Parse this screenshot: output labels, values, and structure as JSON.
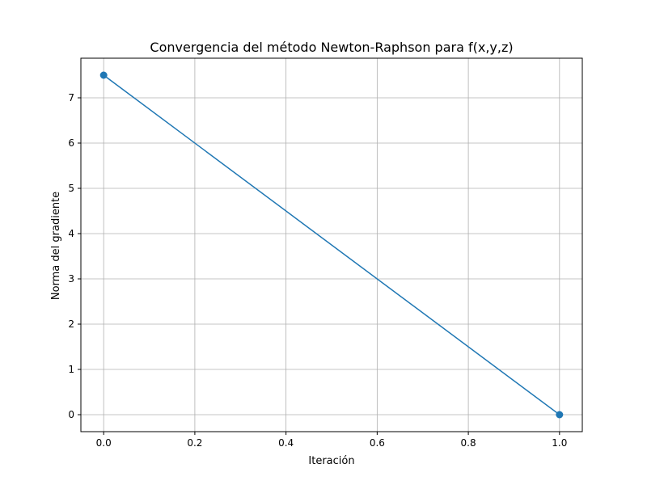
{
  "chart_data": {
    "type": "line",
    "title": "Convergencia del método Newton-Raphson para f(x,y,z)",
    "xlabel": "Iteración",
    "ylabel": "Norma del gradiente",
    "xlim": [
      -0.05,
      1.05
    ],
    "ylim": [
      -0.375,
      7.875
    ],
    "xticks": [
      0.0,
      0.2,
      0.4,
      0.6,
      0.8,
      1.0
    ],
    "xtick_labels": [
      "0.0",
      "0.2",
      "0.4",
      "0.6",
      "0.8",
      "1.0"
    ],
    "yticks": [
      0,
      1,
      2,
      3,
      4,
      5,
      6,
      7
    ],
    "ytick_labels": [
      "0",
      "1",
      "2",
      "3",
      "4",
      "5",
      "6",
      "7"
    ],
    "grid": true,
    "series": [
      {
        "x": [
          0,
          1
        ],
        "values": [
          7.5,
          0
        ],
        "color": "#1f77b4",
        "marker": "circle"
      }
    ]
  }
}
